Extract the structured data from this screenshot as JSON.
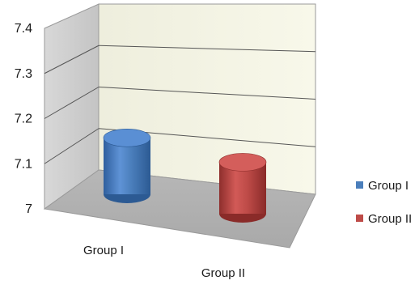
{
  "chart_data": {
    "type": "bar",
    "style": "3d-cylinder",
    "categories": [
      "Group I",
      "Group II"
    ],
    "values": [
      7.23,
      7.21
    ],
    "ylim": [
      7,
      7.4
    ],
    "yticks": [
      "7",
      "7.1",
      "7.2",
      "7.3",
      "7.4"
    ],
    "grid": true,
    "legend_position": "right",
    "series": [
      {
        "name": "Group I",
        "color": "#4a7ebb"
      },
      {
        "name": "Group II",
        "color": "#be4b48"
      }
    ]
  }
}
